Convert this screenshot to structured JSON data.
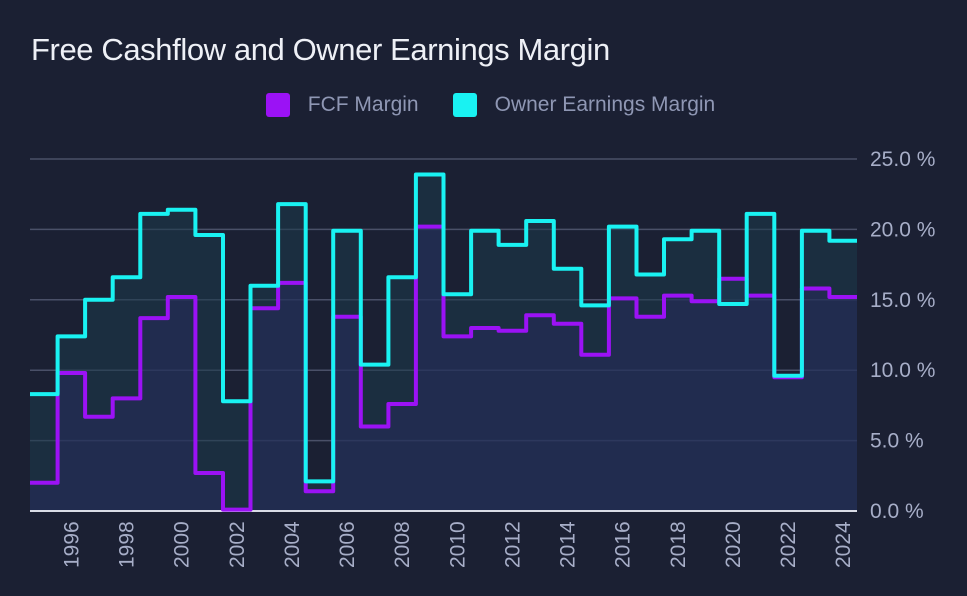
{
  "title": "Free Cashflow and Owner Earnings Margin",
  "legend": [
    {
      "label": "FCF Margin",
      "color": "#9b12f5"
    },
    {
      "label": "Owner Earnings Margin",
      "color": "#19f2f2"
    }
  ],
  "chart_data": {
    "type": "line",
    "step": "center",
    "title": "Free Cashflow and Owner Earnings Margin",
    "x": [
      1995,
      1996,
      1997,
      1998,
      1999,
      2000,
      2001,
      2002,
      2003,
      2004,
      2005,
      2006,
      2007,
      2008,
      2009,
      2010,
      2011,
      2012,
      2013,
      2014,
      2015,
      2016,
      2017,
      2018,
      2019,
      2020,
      2021,
      2022,
      2023,
      2024
    ],
    "xtick_labels": [
      "1996",
      "1998",
      "2000",
      "2002",
      "2004",
      "2006",
      "2008",
      "2010",
      "2012",
      "2014",
      "2016",
      "2018",
      "2020",
      "2022",
      "2024"
    ],
    "xlim": [
      1994.5,
      2024.5
    ],
    "ylim": [
      0,
      25
    ],
    "ytick_labels": [
      "0.0 %",
      "5.0 %",
      "10.0 %",
      "15.0 %",
      "20.0 %",
      "25.0 %"
    ],
    "y_axis_position": "right",
    "grid": true,
    "legend_position": "top-center",
    "series": [
      {
        "name": "FCF Margin",
        "color": "#9b12f5",
        "values": [
          2.0,
          9.8,
          6.7,
          8.0,
          13.7,
          15.2,
          2.7,
          0.1,
          14.4,
          16.2,
          1.4,
          13.8,
          6.0,
          7.6,
          20.2,
          12.4,
          13.0,
          12.8,
          13.9,
          13.3,
          11.1,
          15.1,
          13.8,
          15.3,
          14.9,
          16.5,
          15.3,
          9.5,
          15.8,
          15.2
        ]
      },
      {
        "name": "Owner Earnings Margin",
        "color": "#19f2f2",
        "values": [
          8.3,
          12.4,
          15.0,
          16.6,
          21.1,
          21.4,
          19.6,
          7.8,
          16.0,
          21.8,
          2.1,
          19.9,
          10.4,
          16.6,
          23.9,
          15.4,
          19.9,
          18.9,
          20.6,
          17.2,
          14.6,
          20.2,
          16.8,
          19.3,
          19.9,
          14.7,
          21.1,
          9.6,
          19.9,
          19.2
        ]
      }
    ]
  }
}
